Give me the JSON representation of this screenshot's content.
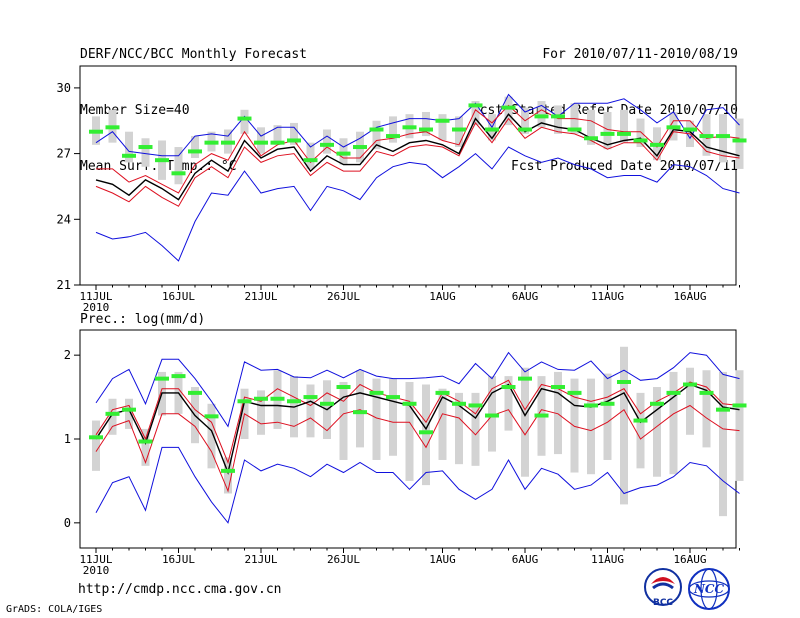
{
  "header": {
    "title": "DERF/NCC/BCC Monthly Forecast",
    "member_size": "Member Size=40",
    "variable": "Mean Surf. Temp.: °C",
    "period": "For 2010/07/11-2010/08/19",
    "fcst_started": "Fcst Started Refer Date 2010/07/10",
    "fcst_produced": "Fcst Produced Date 2010/07/11"
  },
  "footer": {
    "url": "http://cmdp.ncc.cma.gov.cn",
    "grads": "GrADS: COLA/IGES",
    "logos": [
      {
        "name": "bcc-logo",
        "text": "BCC"
      },
      {
        "name": "ncc-logo",
        "text": "NCC"
      }
    ]
  },
  "colors": {
    "green": "#33ee33",
    "box": "#d3d3d3",
    "blue": "#1010dd",
    "red": "#dd1020",
    "black": "#000000"
  },
  "chart_data": [
    {
      "type": "line",
      "title": "Mean Surf. Temp.: °C",
      "ylim": [
        21,
        31
      ],
      "yticks": [
        "21",
        "24",
        "27",
        "30"
      ],
      "x_tick_labels": [
        "11JUL",
        "16JUL",
        "21JUL",
        "26JUL",
        "1AUG",
        "6AUG",
        "11AUG",
        "16AUG"
      ],
      "x_year_label": "2010",
      "days": 40,
      "series": [
        {
          "name": "ens_max",
          "color": "blue",
          "values": [
            27.5,
            28.0,
            27.1,
            27.0,
            26.9,
            26.9,
            27.8,
            27.9,
            27.8,
            28.7,
            27.8,
            28.2,
            28.2,
            27.3,
            27.8,
            27.3,
            27.7,
            28.2,
            28.4,
            28.6,
            28.6,
            28.5,
            28.6,
            29.3,
            28.2,
            29.7,
            28.9,
            29.2,
            28.7,
            29.3,
            29.3,
            29.3,
            29.5,
            29.0,
            28.4,
            28.9,
            27.7,
            29.0,
            29.1,
            28.3
          ]
        },
        {
          "name": "ens_upper",
          "color": "red",
          "values": [
            26.3,
            26.3,
            25.7,
            26.0,
            25.6,
            25.2,
            26.5,
            27.0,
            26.7,
            28.0,
            26.9,
            27.4,
            27.6,
            26.6,
            27.3,
            26.8,
            26.8,
            27.6,
            27.7,
            27.9,
            28.0,
            27.6,
            27.4,
            29.0,
            28.4,
            29.2,
            28.5,
            29.0,
            28.6,
            28.6,
            28.5,
            28.1,
            28.0,
            28.0,
            27.3,
            28.5,
            28.5,
            27.7,
            27.8,
            27.7
          ]
        },
        {
          "name": "ens_mean",
          "color": "black",
          "values": [
            25.8,
            25.6,
            25.1,
            25.8,
            25.4,
            24.9,
            26.1,
            26.7,
            26.2,
            27.6,
            26.8,
            27.2,
            27.3,
            26.2,
            26.9,
            26.5,
            26.5,
            27.4,
            27.1,
            27.5,
            27.6,
            27.4,
            27.0,
            28.6,
            27.7,
            28.8,
            28.0,
            28.4,
            28.2,
            28.1,
            27.7,
            27.4,
            27.6,
            27.7,
            26.9,
            28.1,
            28.0,
            27.3,
            27.1,
            26.9
          ]
        },
        {
          "name": "ens_lower",
          "color": "red",
          "values": [
            25.5,
            25.2,
            24.8,
            25.5,
            25.0,
            24.6,
            25.9,
            26.4,
            25.9,
            27.3,
            26.6,
            26.9,
            27.0,
            26.0,
            26.6,
            26.2,
            26.2,
            27.1,
            26.9,
            27.3,
            27.4,
            27.3,
            26.9,
            28.4,
            27.5,
            28.6,
            27.7,
            28.2,
            28.0,
            27.9,
            27.6,
            27.2,
            27.5,
            27.5,
            26.7,
            28.0,
            27.9,
            27.1,
            26.9,
            26.8
          ]
        },
        {
          "name": "ens_min",
          "color": "blue",
          "values": [
            23.4,
            23.1,
            23.2,
            23.4,
            22.8,
            22.1,
            23.9,
            25.2,
            25.1,
            26.2,
            25.2,
            25.4,
            25.5,
            24.4,
            25.5,
            25.3,
            24.9,
            25.9,
            26.4,
            26.6,
            26.5,
            25.9,
            26.4,
            27.0,
            26.3,
            27.3,
            26.9,
            26.6,
            26.8,
            26.5,
            26.3,
            25.9,
            26.0,
            26.0,
            25.7,
            26.5,
            26.4,
            26.0,
            25.4,
            25.2
          ]
        },
        {
          "name": "observation",
          "color": "green",
          "values": [
            28.0,
            28.2,
            26.9,
            27.3,
            26.7,
            26.1,
            27.1,
            27.5,
            27.5,
            28.6,
            27.5,
            27.5,
            27.6,
            26.7,
            27.4,
            27.0,
            27.3,
            28.1,
            27.8,
            28.2,
            28.1,
            28.5,
            28.1,
            29.2,
            28.1,
            29.1,
            28.1,
            28.7,
            28.7,
            28.1,
            27.7,
            27.9,
            27.9,
            27.6,
            27.4,
            28.2,
            28.1,
            27.8,
            27.8,
            27.6
          ]
        },
        {
          "name": "box_top",
          "color": "box",
          "values": [
            28.7,
            29.0,
            28.0,
            27.7,
            27.6,
            27.3,
            27.8,
            28.0,
            28.1,
            29.0,
            28.2,
            28.3,
            28.4,
            27.5,
            28.1,
            27.7,
            28.0,
            28.5,
            28.7,
            28.8,
            28.9,
            28.8,
            28.7,
            29.4,
            28.8,
            29.6,
            29.1,
            29.4,
            29.2,
            29.3,
            29.0,
            28.9,
            29.0,
            28.6,
            28.2,
            28.9,
            28.5,
            28.8,
            28.8,
            28.6
          ]
        },
        {
          "name": "box_bottom",
          "color": "box",
          "values": [
            27.4,
            27.5,
            26.6,
            26.4,
            25.8,
            25.6,
            26.8,
            27.1,
            27.0,
            27.9,
            27.0,
            27.4,
            27.4,
            26.3,
            27.0,
            26.5,
            26.6,
            27.2,
            27.5,
            27.7,
            27.8,
            27.6,
            27.3,
            28.3,
            27.6,
            28.3,
            27.9,
            28.2,
            27.9,
            27.9,
            27.4,
            27.2,
            27.5,
            27.3,
            26.7,
            27.6,
            27.3,
            26.9,
            26.6,
            26.3
          ]
        }
      ]
    },
    {
      "type": "line",
      "title": "Prec.: log(mm/d)",
      "ylim": [
        -0.3,
        2.3
      ],
      "yticks": [
        "0",
        "1",
        "2"
      ],
      "x_tick_labels": [
        "11JUL",
        "16JUL",
        "21JUL",
        "26JUL",
        "1AUG",
        "6AUG",
        "11AUG",
        "16AUG"
      ],
      "x_year_label": "2010",
      "days": 40,
      "series": [
        {
          "name": "ens_max",
          "color": "blue",
          "values": [
            1.43,
            1.72,
            1.83,
            1.42,
            1.95,
            1.95,
            1.72,
            1.45,
            1.15,
            1.92,
            1.82,
            1.83,
            1.74,
            1.73,
            1.82,
            1.73,
            1.83,
            1.75,
            1.72,
            1.72,
            1.73,
            1.75,
            1.66,
            1.9,
            1.72,
            2.03,
            1.8,
            1.92,
            1.83,
            1.82,
            1.93,
            1.72,
            1.82,
            1.7,
            1.72,
            1.85,
            2.03,
            2.0,
            1.77,
            1.72
          ]
        },
        {
          "name": "ens_upper",
          "color": "red",
          "values": [
            1.05,
            1.35,
            1.4,
            1.0,
            1.6,
            1.6,
            1.35,
            1.2,
            0.72,
            1.5,
            1.45,
            1.6,
            1.5,
            1.4,
            1.55,
            1.45,
            1.65,
            1.55,
            1.5,
            1.45,
            1.2,
            1.55,
            1.45,
            1.3,
            1.6,
            1.7,
            1.35,
            1.65,
            1.6,
            1.5,
            1.45,
            1.5,
            1.6,
            1.3,
            1.45,
            1.55,
            1.68,
            1.62,
            1.42,
            1.4
          ]
        },
        {
          "name": "ens_mean",
          "color": "black",
          "values": [
            1.0,
            1.3,
            1.35,
            0.95,
            1.55,
            1.55,
            1.28,
            1.1,
            0.6,
            1.45,
            1.4,
            1.4,
            1.38,
            1.45,
            1.35,
            1.5,
            1.55,
            1.5,
            1.45,
            1.4,
            1.12,
            1.5,
            1.4,
            1.25,
            1.55,
            1.65,
            1.28,
            1.6,
            1.55,
            1.4,
            1.38,
            1.45,
            1.55,
            1.2,
            1.35,
            1.5,
            1.65,
            1.58,
            1.38,
            1.35
          ]
        },
        {
          "name": "ens_lower",
          "color": "red",
          "values": [
            0.85,
            1.15,
            1.22,
            0.72,
            1.3,
            1.3,
            1.15,
            0.85,
            0.38,
            1.3,
            1.18,
            1.2,
            1.15,
            1.25,
            1.1,
            1.3,
            1.35,
            1.25,
            1.2,
            1.2,
            0.9,
            1.3,
            1.25,
            1.05,
            1.28,
            1.35,
            1.05,
            1.35,
            1.3,
            1.15,
            1.1,
            1.2,
            1.35,
            1.0,
            1.15,
            1.3,
            1.4,
            1.25,
            1.12,
            1.1
          ]
        },
        {
          "name": "ens_min",
          "color": "blue",
          "values": [
            0.12,
            0.48,
            0.55,
            0.15,
            0.9,
            0.9,
            0.55,
            0.25,
            0.0,
            0.75,
            0.62,
            0.7,
            0.65,
            0.55,
            0.7,
            0.6,
            0.72,
            0.6,
            0.6,
            0.4,
            0.6,
            0.62,
            0.4,
            0.28,
            0.4,
            0.75,
            0.4,
            0.65,
            0.58,
            0.4,
            0.45,
            0.6,
            0.35,
            0.42,
            0.45,
            0.55,
            0.72,
            0.68,
            0.5,
            0.35
          ]
        },
        {
          "name": "observation",
          "color": "green",
          "values": [
            1.02,
            1.3,
            1.35,
            0.97,
            1.72,
            1.75,
            1.55,
            1.27,
            0.62,
            1.45,
            1.48,
            1.48,
            1.45,
            1.5,
            1.42,
            1.62,
            1.32,
            1.55,
            1.5,
            1.42,
            1.08,
            1.55,
            1.42,
            1.4,
            1.28,
            1.62,
            1.72,
            1.28,
            1.62,
            1.55,
            1.4,
            1.42,
            1.68,
            1.22,
            1.42,
            1.55,
            1.65,
            1.55,
            1.35,
            1.4
          ]
        },
        {
          "name": "box_top",
          "color": "box",
          "values": [
            1.22,
            1.48,
            1.48,
            1.12,
            1.8,
            1.8,
            1.62,
            1.42,
            0.78,
            1.6,
            1.58,
            1.82,
            1.75,
            1.65,
            1.7,
            1.68,
            1.82,
            1.72,
            1.72,
            1.68,
            1.65,
            1.6,
            1.55,
            1.55,
            1.75,
            1.75,
            1.85,
            1.75,
            1.8,
            1.72,
            1.72,
            1.78,
            2.1,
            1.55,
            1.62,
            1.8,
            1.85,
            1.82,
            1.8,
            1.82
          ]
        },
        {
          "name": "box_bottom",
          "color": "box",
          "values": [
            0.62,
            1.05,
            1.12,
            0.68,
            1.28,
            1.3,
            0.95,
            0.65,
            0.35,
            1.0,
            1.05,
            1.12,
            1.02,
            1.02,
            1.0,
            0.75,
            0.9,
            0.75,
            0.8,
            0.5,
            0.45,
            0.75,
            0.7,
            0.68,
            0.85,
            1.1,
            0.55,
            0.8,
            0.82,
            0.6,
            0.58,
            0.75,
            0.22,
            0.65,
            0.55,
            0.58,
            1.05,
            0.9,
            0.08,
            0.5
          ]
        }
      ]
    }
  ]
}
